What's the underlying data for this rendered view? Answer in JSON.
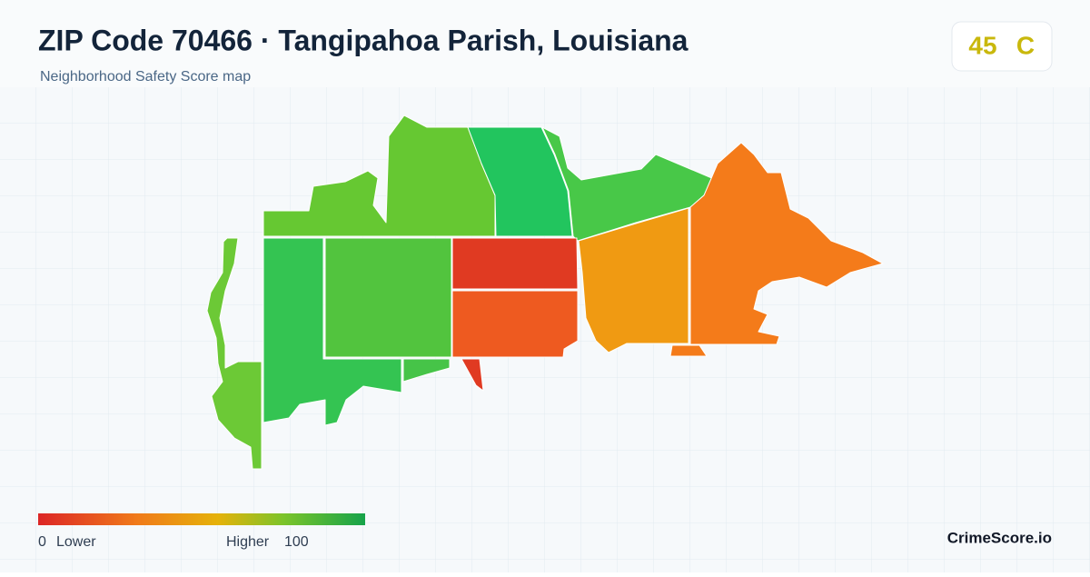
{
  "header": {
    "title": "ZIP Code 70466 · Tangipahoa Parish, Louisiana",
    "subtitle": "Neighborhood Safety Score map"
  },
  "score": {
    "value": 45,
    "grade": "C"
  },
  "legend": {
    "min": 0,
    "min_label": "Lower",
    "max_label": "Higher",
    "max": 100
  },
  "brand": "CrimeScore.io"
}
